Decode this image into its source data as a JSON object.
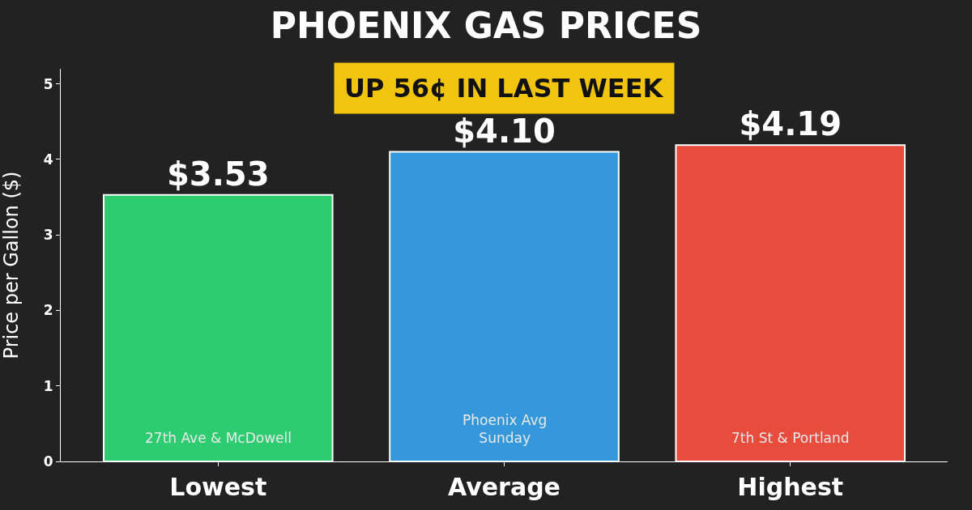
{
  "chart_data": {
    "type": "bar",
    "title": "PHOENIX GAS PRICES",
    "ylabel": "Price per Gallon ($)",
    "categories": [
      "Lowest",
      "Average",
      "Highest"
    ],
    "values": [
      3.53,
      4.1,
      4.19
    ],
    "colors": [
      "#2ecc71",
      "#3498db",
      "#e74c3c"
    ],
    "value_labels": [
      "$3.53",
      "$4.10",
      "$4.19"
    ],
    "ylim": [
      0,
      5.2
    ],
    "yticks": [
      0,
      1,
      2,
      3,
      4,
      5
    ],
    "grid": false,
    "annotations": [
      "UP 56¢ IN LAST WEEK",
      "27th Ave & McDowell",
      "Phoenix Avg\nSunday",
      "7th St & Portland"
    ]
  }
}
